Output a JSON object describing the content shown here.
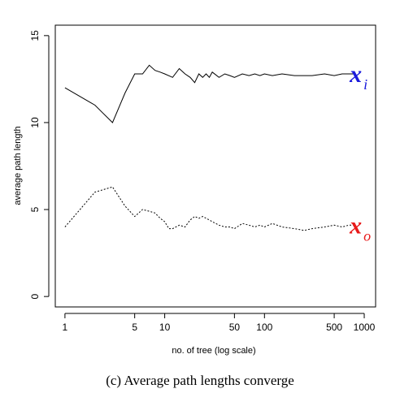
{
  "chart_data": {
    "type": "line",
    "xlabel": "no. of tree (log scale)",
    "ylabel": "average path length",
    "x_scale": "log",
    "xlim": [
      0.8,
      1300
    ],
    "ylim": [
      0,
      15
    ],
    "x_ticks": [
      1,
      5,
      10,
      50,
      100,
      500,
      1000
    ],
    "x_tick_labels": [
      "1",
      "5",
      "10",
      "50",
      "100",
      "500",
      "1000"
    ],
    "y_ticks": [
      0,
      5,
      10,
      15
    ],
    "y_tick_labels": [
      "0",
      "5",
      "10",
      "15"
    ],
    "grid": false,
    "series": [
      {
        "id": "xi",
        "label_main": "x",
        "label_sub": "i",
        "color": "#1a1adc",
        "line_color": "#000000",
        "dash": "solid",
        "x": [
          1,
          2,
          3,
          4,
          5,
          6,
          7,
          8,
          9,
          10,
          12,
          14,
          16,
          18,
          20,
          22,
          24,
          26,
          28,
          30,
          35,
          40,
          45,
          50,
          60,
          70,
          80,
          90,
          100,
          120,
          150,
          200,
          250,
          300,
          400,
          500,
          600,
          700,
          800
        ],
        "y": [
          12.0,
          11.0,
          10.0,
          11.7,
          12.8,
          12.8,
          13.3,
          13.0,
          12.9,
          12.8,
          12.6,
          13.1,
          12.8,
          12.6,
          12.3,
          12.8,
          12.6,
          12.8,
          12.6,
          12.9,
          12.6,
          12.8,
          12.7,
          12.6,
          12.8,
          12.7,
          12.8,
          12.7,
          12.8,
          12.7,
          12.8,
          12.7,
          12.7,
          12.7,
          12.8,
          12.7,
          12.8,
          12.8,
          12.8
        ]
      },
      {
        "id": "xo",
        "label_main": "x",
        "label_sub": "o",
        "color": "#e81a1a",
        "line_color": "#000000",
        "dash": "dotted",
        "x": [
          1,
          2,
          3,
          4,
          5,
          6,
          7,
          8,
          9,
          10,
          11,
          12,
          14,
          16,
          18,
          20,
          22,
          24,
          26,
          28,
          30,
          35,
          40,
          45,
          50,
          60,
          70,
          80,
          90,
          100,
          120,
          150,
          200,
          250,
          300,
          400,
          500,
          600,
          700,
          800
        ],
        "y": [
          4.0,
          6.0,
          6.3,
          5.2,
          4.6,
          5.0,
          4.9,
          4.8,
          4.5,
          4.3,
          3.9,
          3.9,
          4.1,
          4.0,
          4.4,
          4.6,
          4.5,
          4.6,
          4.5,
          4.4,
          4.3,
          4.1,
          4.0,
          4.0,
          3.9,
          4.2,
          4.1,
          4.0,
          4.1,
          4.0,
          4.2,
          4.0,
          3.9,
          3.8,
          3.9,
          4.0,
          4.1,
          4.0,
          4.1,
          4.1
        ]
      }
    ]
  },
  "caption": "(c) Average path lengths converge"
}
